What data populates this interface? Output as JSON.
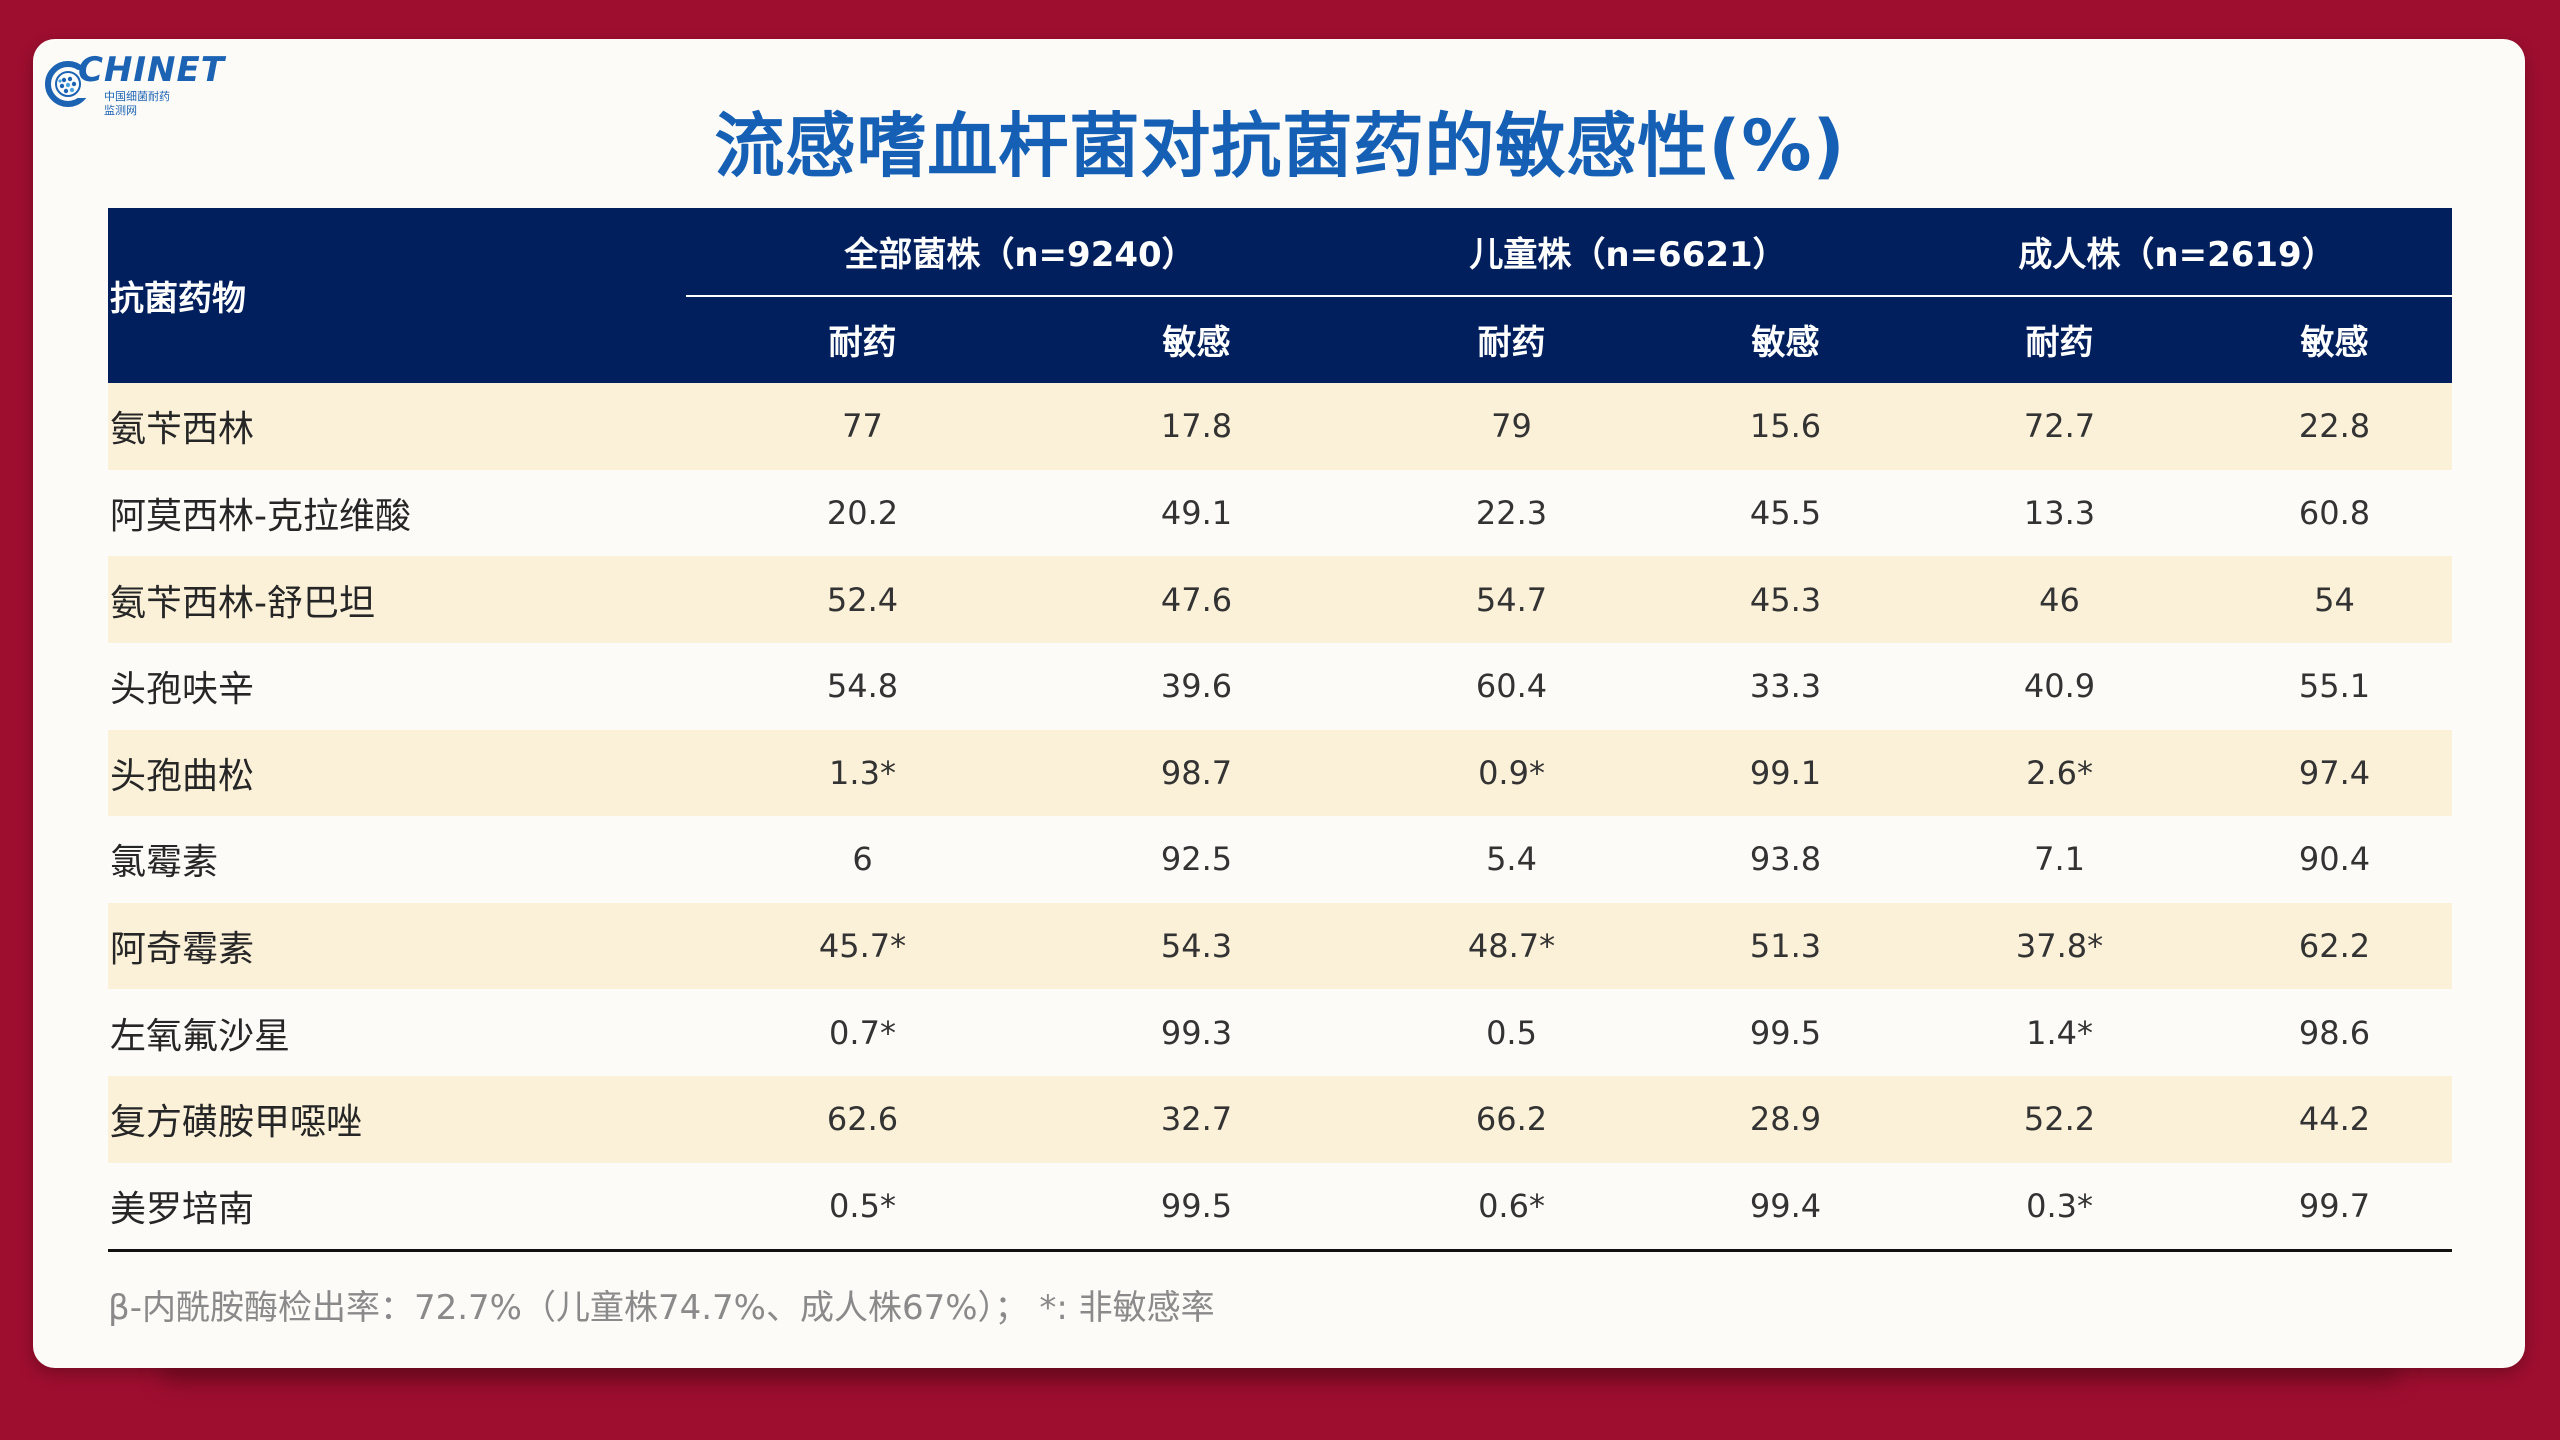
{
  "logo": {
    "wordmark": "CHINET",
    "subtitle_line1": "中国细菌耐药",
    "subtitle_line2": "监测网"
  },
  "title": "流感嗜血杆菌对抗菌药的敏感性(%)",
  "table": {
    "drug_header": "抗菌药物",
    "groups": [
      "全部菌株（n=9240）",
      "儿童株（n=6621）",
      "成人株（n=2619）"
    ],
    "subheaders": [
      "耐药",
      "敏感",
      "耐药",
      "敏感",
      "耐药",
      "敏感"
    ],
    "rows": [
      {
        "drug": "氨苄西林",
        "values": [
          "77",
          "17.8",
          "79",
          "15.6",
          "72.7",
          "22.8"
        ]
      },
      {
        "drug": "阿莫西林-克拉维酸",
        "values": [
          "20.2",
          "49.1",
          "22.3",
          "45.5",
          "13.3",
          "60.8"
        ]
      },
      {
        "drug": "氨苄西林-舒巴坦",
        "values": [
          "52.4",
          "47.6",
          "54.7",
          "45.3",
          "46",
          "54"
        ]
      },
      {
        "drug": "头孢呋辛",
        "values": [
          "54.8",
          "39.6",
          "60.4",
          "33.3",
          "40.9",
          "55.1"
        ]
      },
      {
        "drug": "头孢曲松",
        "values": [
          "1.3*",
          "98.7",
          "0.9*",
          "99.1",
          "2.6*",
          "97.4"
        ]
      },
      {
        "drug": "氯霉素",
        "values": [
          "6",
          "92.5",
          "5.4",
          "93.8",
          "7.1",
          "90.4"
        ]
      },
      {
        "drug": "阿奇霉素",
        "values": [
          "45.7*",
          "54.3",
          "48.7*",
          "51.3",
          "37.8*",
          "62.2"
        ]
      },
      {
        "drug": "左氧氟沙星",
        "values": [
          "0.7*",
          "99.3",
          "0.5",
          "99.5",
          "1.4*",
          "98.6"
        ]
      },
      {
        "drug": "复方磺胺甲噁唑",
        "values": [
          "62.6",
          "32.7",
          "66.2",
          "28.9",
          "52.2",
          "44.2"
        ]
      },
      {
        "drug": "美罗培南",
        "values": [
          "0.5*",
          "99.5",
          "0.6*",
          "99.4",
          "0.3*",
          "99.7"
        ]
      }
    ]
  },
  "footnote": "β-内酰胺酶检出率：72.7%（儿童株74.7%、成人株67%）；  *: 非敏感率",
  "colors": {
    "background": "#9e0e2f",
    "card": "#fcfbf8",
    "title": "#1560b4",
    "header_bg": "#001f5c",
    "row_highlight": "#fbf1d9"
  }
}
